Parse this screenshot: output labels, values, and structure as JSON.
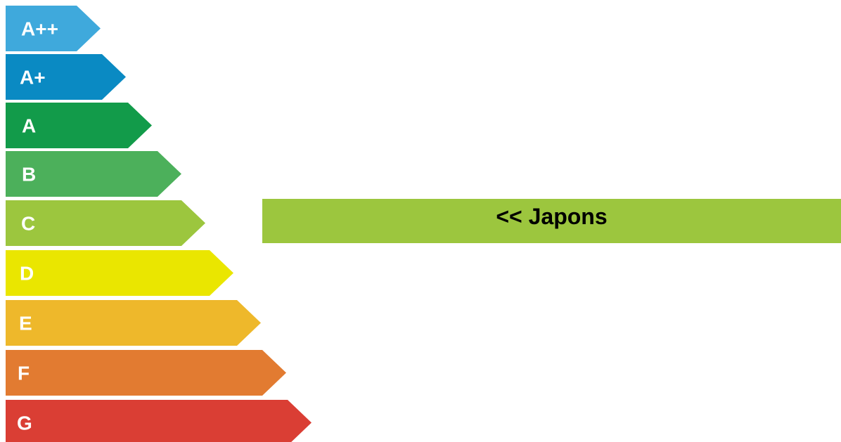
{
  "energy_scale": {
    "classes": [
      {
        "label": "A++",
        "color": "#3fa9dc"
      },
      {
        "label": "A+",
        "color": "#0a8ac3"
      },
      {
        "label": "A",
        "color": "#129b4a"
      },
      {
        "label": "B",
        "color": "#4cb05b"
      },
      {
        "label": "C",
        "color": "#9cc63e"
      },
      {
        "label": "D",
        "color": "#eae600"
      },
      {
        "label": "E",
        "color": "#eeb82b"
      },
      {
        "label": "F",
        "color": "#e27b31"
      },
      {
        "label": "G",
        "color": "#da3e34"
      }
    ]
  },
  "pointer": {
    "label": "<< Japons",
    "color": "#9cc63e",
    "indicated_class": "C"
  }
}
